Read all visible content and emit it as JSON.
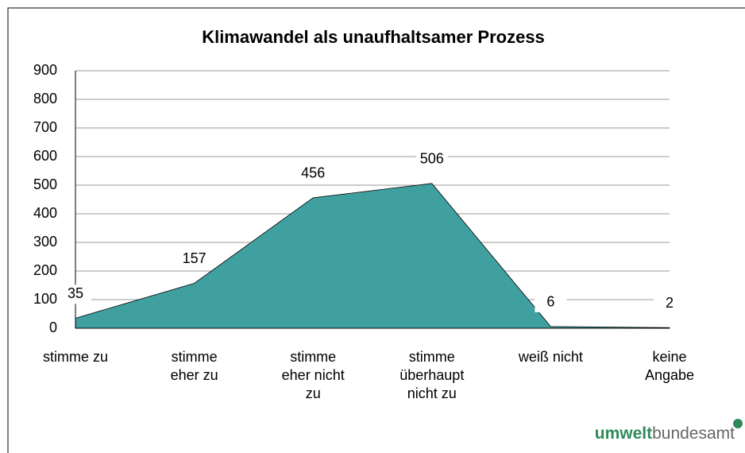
{
  "chart_data": {
    "type": "area",
    "title": "Klimawandel als unaufhaltsamer Prozess",
    "categories": [
      [
        "stimme zu"
      ],
      [
        "stimme",
        "eher zu"
      ],
      [
        "stimme",
        "eher nicht",
        "zu"
      ],
      [
        "stimme",
        "überhaupt",
        "nicht zu"
      ],
      [
        "weiß nicht"
      ],
      [
        "keine",
        "Angabe"
      ]
    ],
    "values": [
      35,
      157,
      456,
      506,
      6,
      2
    ],
    "color": "#40a0a0",
    "ylim": [
      0,
      900
    ],
    "yticks": [
      0,
      100,
      200,
      300,
      400,
      500,
      600,
      700,
      800,
      900
    ],
    "grid": true,
    "logo": {
      "bold": "umwelt",
      "regular": "bundesamt"
    }
  }
}
